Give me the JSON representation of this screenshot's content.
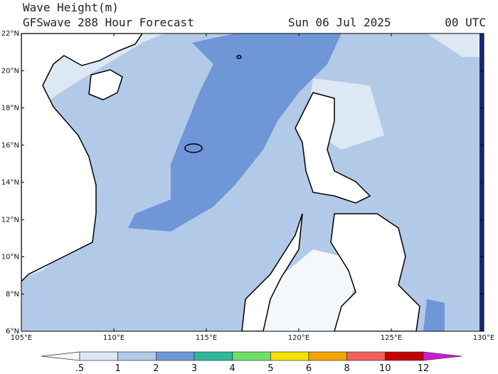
{
  "header": {
    "title": "Wave Height(m)",
    "subtitle": "GFSwave 288 Hour Forecast",
    "date": "Sun 06 Jul 2025",
    "time": "00 UTC"
  },
  "map": {
    "lat_labels": [
      "22°N",
      "20°N",
      "18°N",
      "16°N",
      "14°N",
      "12°N",
      "10°N",
      "8°N",
      "6°N"
    ],
    "lon_labels": [
      "105°E",
      "110°E",
      "115°E",
      "120°E",
      "125°E",
      "130°E"
    ]
  },
  "colorbar": {
    "labels": [
      ".5",
      "1",
      "2",
      "3",
      "4",
      "5",
      "6",
      "8",
      "10",
      "12"
    ],
    "colors": [
      "#f4f7fb",
      "#dde8f5",
      "#b3c9e8",
      "#6f97d7",
      "#2fb89a",
      "#6fe06a",
      "#f2e200",
      "#f5a300",
      "#f0605e",
      "#c40000",
      "#d21ad2"
    ]
  }
}
